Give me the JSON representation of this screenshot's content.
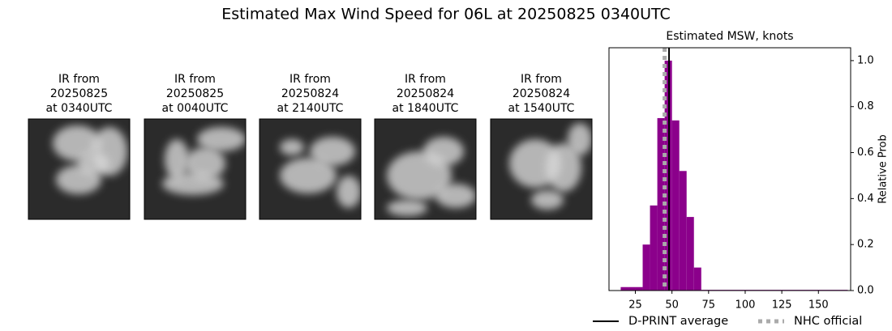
{
  "title": "Estimated Max Wind Speed for 06L at 20250825 0340UTC",
  "panels": [
    {
      "lines": [
        "IR from",
        "20250825",
        "at 0340UTC"
      ]
    },
    {
      "lines": [
        "IR from",
        "20250825",
        "at 0040UTC"
      ]
    },
    {
      "lines": [
        "IR from",
        "20250824",
        "at 2140UTC"
      ]
    },
    {
      "lines": [
        "IR from",
        "20250824",
        "at 1840UTC"
      ]
    },
    {
      "lines": [
        "IR from",
        "20250824",
        "at 1540UTC"
      ]
    }
  ],
  "chart_data": {
    "type": "histogram",
    "title": "Estimated MSW, knots",
    "y_label": "Relative Prob",
    "bins": [
      15,
      20,
      25,
      30,
      35,
      40,
      45,
      50,
      55,
      60,
      65,
      70,
      170
    ],
    "values": [
      0.015,
      0.015,
      0.015,
      0.2,
      0.37,
      0.75,
      1.0,
      0.74,
      0.52,
      0.32,
      0.1,
      0.003
    ],
    "color": "#8b008b",
    "xlim": [
      7,
      172
    ],
    "xticks": [
      25,
      50,
      75,
      100,
      125,
      150
    ],
    "ylim": [
      0,
      1.056
    ],
    "yticks": [
      {
        "value": 0,
        "label": "0.0"
      },
      {
        "value": 0.2,
        "label": "0.2"
      },
      {
        "value": 0.4,
        "label": "0.4"
      },
      {
        "value": 0.6,
        "label": "0.6"
      },
      {
        "value": 0.8,
        "label": "0.8"
      },
      {
        "value": 1,
        "label": "1.0"
      }
    ],
    "vlines": [
      {
        "name": "D-PRINT average",
        "value": 48,
        "color": "#000000",
        "style": "solid"
      },
      {
        "name": "NHC official",
        "value": 45,
        "color": "#aaaaaa",
        "style": "dotted"
      }
    ]
  }
}
